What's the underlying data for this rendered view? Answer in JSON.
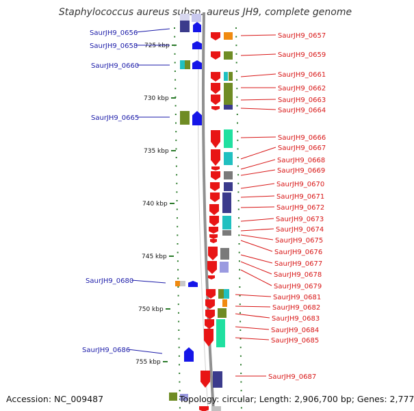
{
  "header": {
    "title": "Staphylococcus aureus subsp. aureus JH9, complete genome"
  },
  "footer": {
    "accession": "Accession: NC_009487",
    "summary": "Topology: circular; Length: 2,906,700 bp; Genes: 2,777"
  },
  "scale_ticks": [
    "725 kbp",
    "730 kbp",
    "735 kbp",
    "740 kbp",
    "745 kbp",
    "750 kbp",
    "755 kbp"
  ],
  "gene_labels_reverse": [
    "SaurJH9_0656",
    "SaurJH9_0658",
    "SaurJH9_0660",
    "SaurJH9_0665",
    "SaurJH9_0680",
    "SaurJH9_0686"
  ],
  "gene_labels_forward": [
    "SaurJH9_0657",
    "SaurJH9_0659",
    "SaurJH9_0661",
    "SaurJH9_0662",
    "SaurJH9_0663",
    "SaurJH9_0664",
    "SaurJH9_0666",
    "SaurJH9_0667",
    "SaurJH9_0668",
    "SaurJH9_0669",
    "SaurJH9_0670",
    "SaurJH9_0671",
    "SaurJH9_0672",
    "SaurJH9_0673",
    "SaurJH9_0674",
    "SaurJH9_0675",
    "SaurJH9_0676",
    "SaurJH9_0677",
    "SaurJH9_0678",
    "SaurJH9_0679",
    "SaurJH9_0681",
    "SaurJH9_0682",
    "SaurJH9_0683",
    "SaurJH9_0684",
    "SaurJH9_0685",
    "SaurJH9_0687"
  ],
  "colors": {
    "reverse_label": "#1a1aa8",
    "forward_label": "#d81515",
    "backbone": "#909090",
    "tick": "#2a7a2a",
    "reverse_arrow": "#1515e8",
    "forward_arrow": "#e81515",
    "cog_navy": "#3b3b8c",
    "cog_olive": "#6f8c24",
    "cog_teal": "#20c0c0",
    "cog_mint": "#20e0a0",
    "cog_orange": "#f08a10",
    "cog_gray": "#7a7a7a",
    "cog_lavender": "#9a9ae0"
  }
}
